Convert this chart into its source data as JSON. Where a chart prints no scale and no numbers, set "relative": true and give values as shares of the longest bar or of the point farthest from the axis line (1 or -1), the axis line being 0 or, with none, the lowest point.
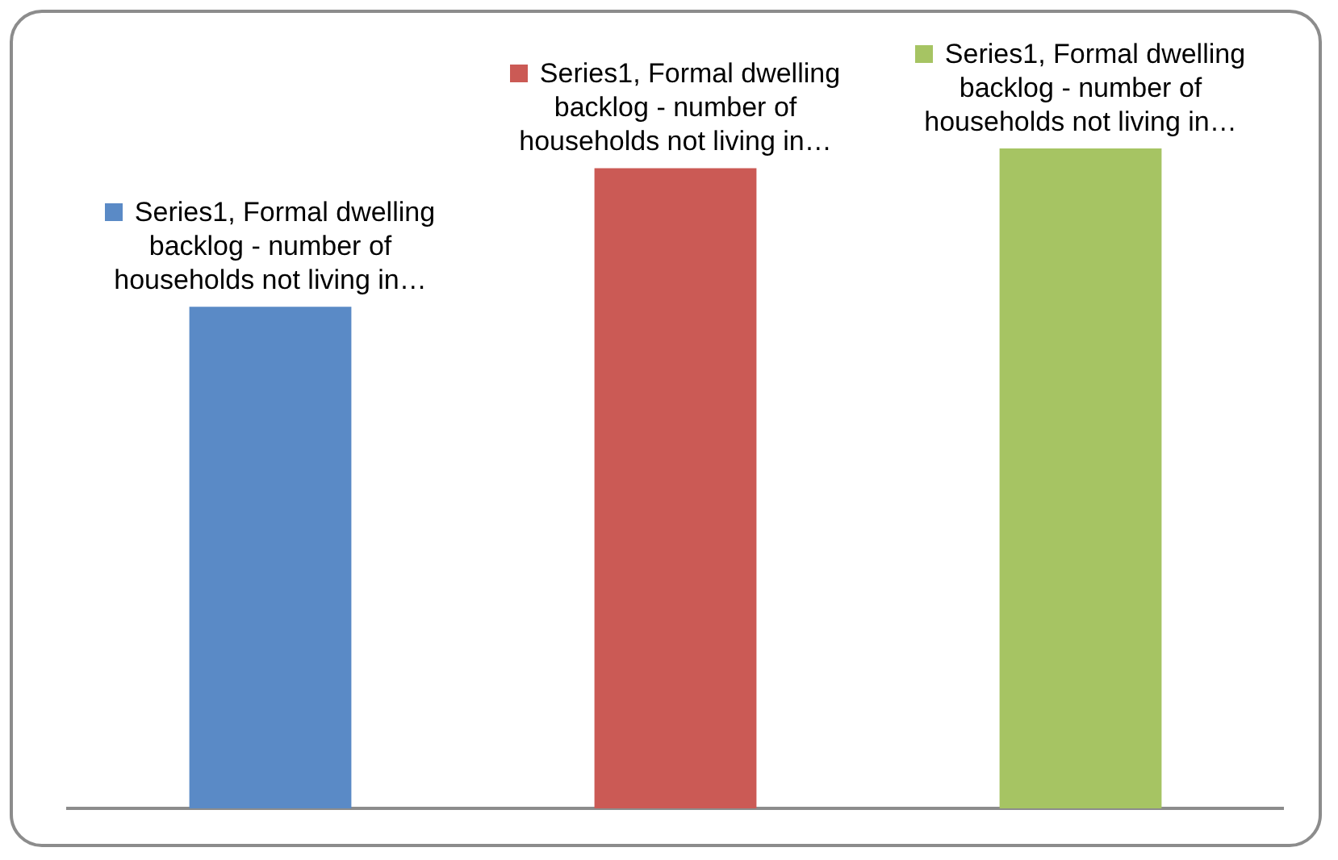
{
  "chart_data": {
    "type": "bar",
    "relative": true,
    "categories": [
      null,
      null,
      null
    ],
    "values": [
      0.76,
      0.97,
      1
    ],
    "colors": [
      "#5a8ac6",
      "#cb5a55",
      "#a6c463"
    ],
    "annotations": [
      "Series1, Formal dwelling backlog - number of households not living in…",
      "Series1, Formal dwelling backlog - number of households not living in…",
      "Series1, Formal dwelling backlog - number of households not living in…"
    ]
  }
}
